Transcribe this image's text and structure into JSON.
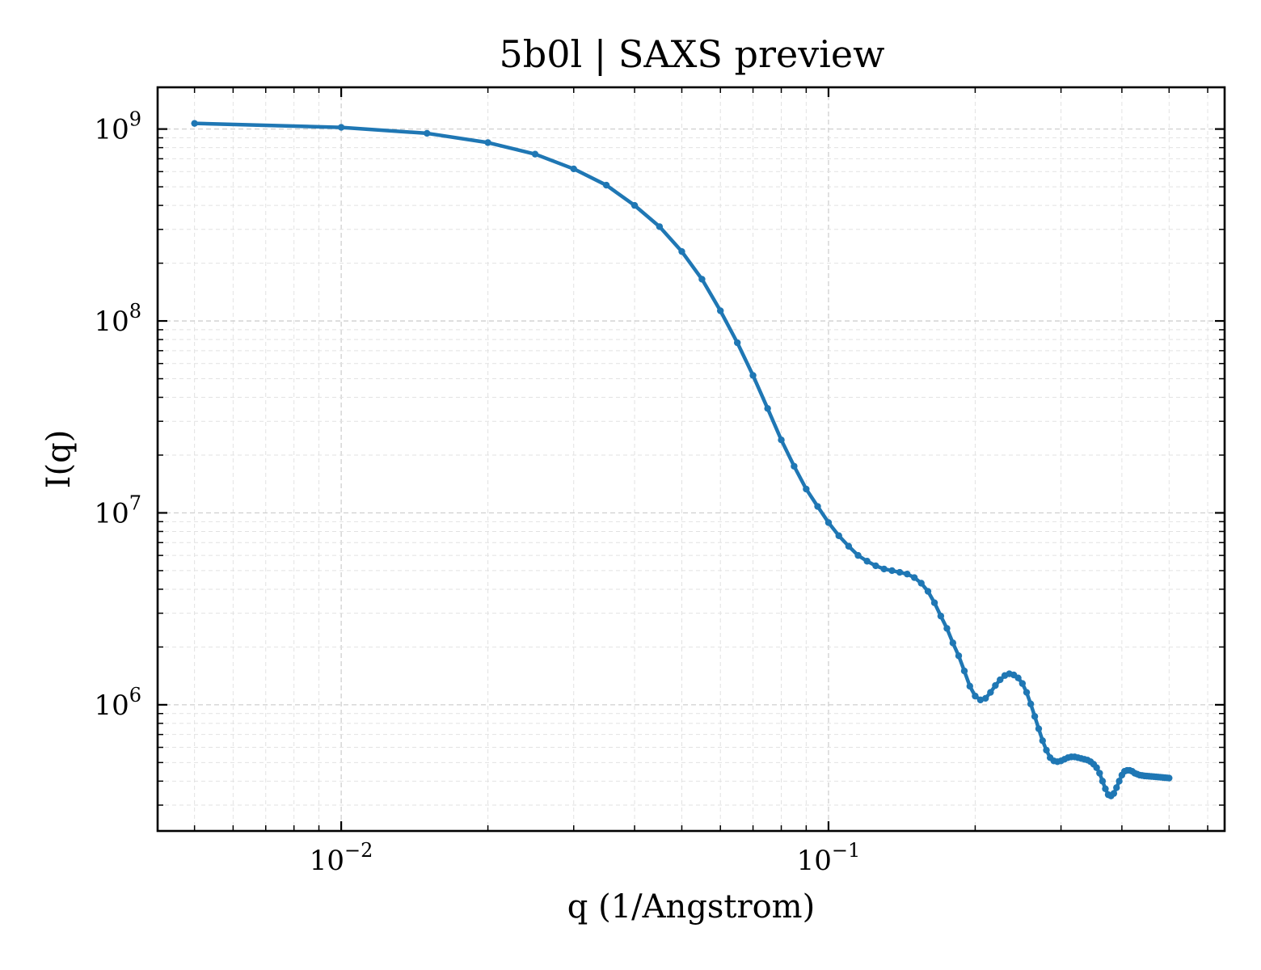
{
  "chart_data": {
    "type": "line",
    "title": "5b0l | SAXS preview",
    "xlabel": "q (1/Angstrom)",
    "ylabel": "I(q)",
    "xscale": "log",
    "yscale": "log",
    "xlim": [
      0.0042,
      0.65
    ],
    "ylim": [
      220000,
      1650000000
    ],
    "grid": true,
    "xticks": [
      {
        "value": 0.01,
        "base": "10",
        "exp": "−2"
      },
      {
        "value": 0.1,
        "base": "10",
        "exp": "−1"
      }
    ],
    "yticks": [
      {
        "value": 1000000,
        "base": "10",
        "exp": "6"
      },
      {
        "value": 10000000,
        "base": "10",
        "exp": "7"
      },
      {
        "value": 100000000,
        "base": "10",
        "exp": "8"
      },
      {
        "value": 1000000000,
        "base": "10",
        "exp": "9"
      }
    ],
    "series": [
      {
        "color": "#1f77b4",
        "marker": "circle",
        "x": [
          0.005,
          0.01,
          0.015,
          0.02,
          0.025,
          0.03,
          0.035,
          0.04,
          0.045,
          0.05,
          0.055,
          0.06,
          0.065,
          0.07,
          0.075,
          0.08,
          0.085,
          0.09,
          0.095,
          0.1,
          0.105,
          0.11,
          0.115,
          0.12,
          0.125,
          0.13,
          0.135,
          0.14,
          0.145,
          0.15,
          0.155,
          0.16,
          0.165,
          0.17,
          0.175,
          0.18,
          0.185,
          0.19,
          0.195,
          0.2,
          0.205,
          0.21,
          0.215,
          0.22,
          0.225,
          0.23,
          0.235,
          0.24,
          0.245,
          0.25,
          0.255,
          0.26,
          0.265,
          0.27,
          0.275,
          0.28,
          0.285,
          0.29,
          0.295,
          0.3,
          0.305,
          0.31,
          0.315,
          0.32,
          0.325,
          0.33,
          0.335,
          0.34,
          0.345,
          0.35,
          0.355,
          0.36,
          0.365,
          0.37,
          0.375,
          0.38,
          0.385,
          0.39,
          0.395,
          0.4,
          0.405,
          0.41,
          0.415,
          0.42,
          0.425,
          0.43,
          0.435,
          0.44,
          0.445,
          0.45,
          0.455,
          0.46,
          0.465,
          0.47,
          0.475,
          0.48,
          0.485,
          0.49,
          0.495,
          0.5
        ],
        "y": [
          1070000000,
          1020000000,
          950000000,
          850000000,
          740000000,
          620000000,
          510000000,
          400000000,
          310000000,
          230000000,
          165000000,
          113000000,
          77000000,
          52000000,
          35000000,
          24000000,
          17500000,
          13300000,
          10800000,
          8900000,
          7600000,
          6700000,
          6000000,
          5600000,
          5300000,
          5100000,
          5000000,
          4900000,
          4800000,
          4600000,
          4300000,
          3900000,
          3400000,
          2900000,
          2500000,
          2100000,
          1800000,
          1500000,
          1250000,
          1110000,
          1060000,
          1080000,
          1160000,
          1260000,
          1350000,
          1420000,
          1450000,
          1430000,
          1380000,
          1290000,
          1160000,
          1010000,
          870000,
          750000,
          650000,
          580000,
          530000,
          510000,
          505000,
          510000,
          520000,
          530000,
          535000,
          535000,
          530000,
          525000,
          520000,
          515000,
          505000,
          490000,
          470000,
          440000,
          400000,
          365000,
          340000,
          335000,
          345000,
          370000,
          400000,
          430000,
          450000,
          455000,
          455000,
          450000,
          440000,
          435000,
          430000,
          428000,
          426000,
          425000,
          424000,
          423000,
          422000,
          421000,
          420000,
          419000,
          418000,
          417000,
          416000,
          415000
        ]
      }
    ]
  }
}
